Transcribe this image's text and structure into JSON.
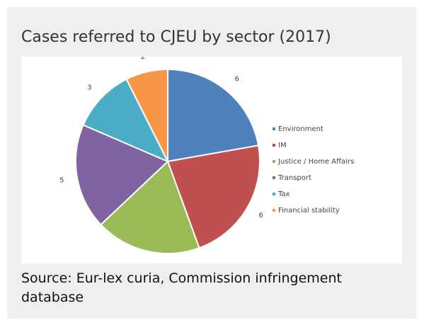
{
  "chart_data": {
    "type": "pie",
    "title": "Cases referred to CJEU by sector (2017)",
    "categories": [
      "Environment",
      "IM",
      "Justice / Home Affairs",
      "Transport",
      "Tax",
      "Financial stability"
    ],
    "values": [
      6,
      6,
      5,
      5,
      3,
      2
    ],
    "colors": [
      "#4f81bd",
      "#c0504d",
      "#9bbb59",
      "#8064a2",
      "#4bacc6",
      "#f79646"
    ],
    "legend": "right"
  },
  "source": "Source: Eur-lex curia, Commission infringement database"
}
